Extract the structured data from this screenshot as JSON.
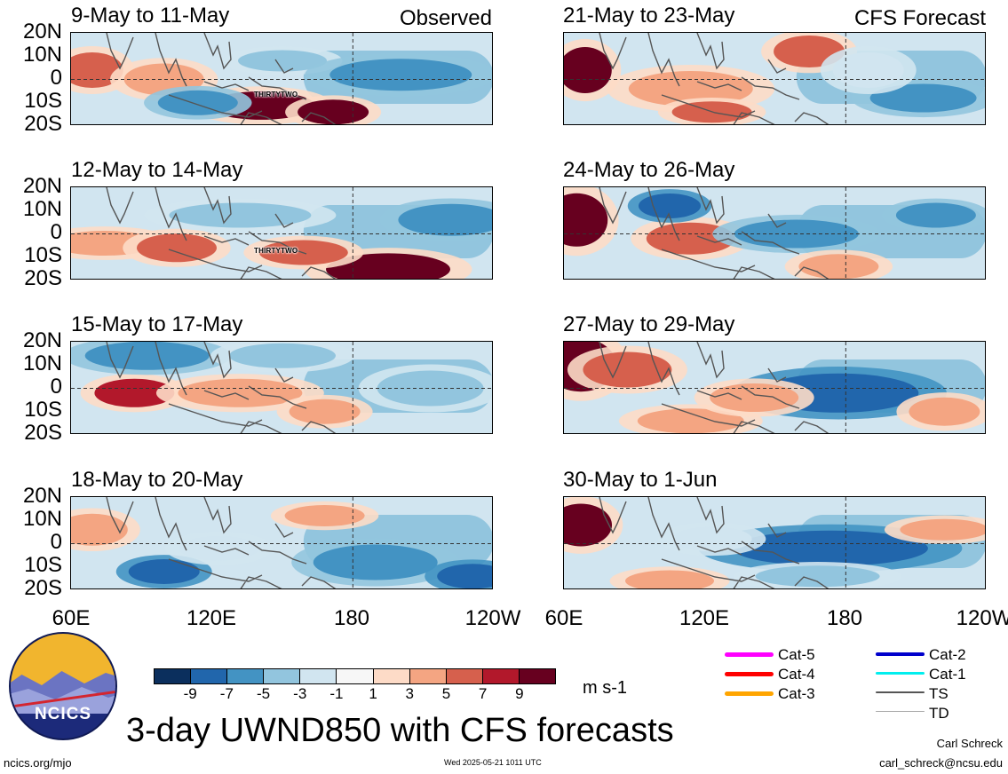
{
  "header": {
    "left_label": "Observed",
    "right_label": "CFS Forecast"
  },
  "panels": [
    {
      "title": "9-May to 11-May",
      "storm_label": "THIRTYTWO"
    },
    {
      "title": "21-May to 23-May"
    },
    {
      "title": "12-May to 14-May",
      "storm_label": "THIRTYTWO"
    },
    {
      "title": "24-May to 26-May"
    },
    {
      "title": "15-May to 17-May"
    },
    {
      "title": "27-May to 29-May"
    },
    {
      "title": "18-May to 20-May"
    },
    {
      "title": "30-May to 1-Jun"
    }
  ],
  "axes": {
    "lat_ticks": [
      "20N",
      "10N",
      "0",
      "10S",
      "20S"
    ],
    "lon_ticks": [
      "60E",
      "120E",
      "180",
      "120W"
    ]
  },
  "colorbar": {
    "labels": [
      "-9",
      "-7",
      "-5",
      "-3",
      "-1",
      "1",
      "3",
      "5",
      "7",
      "9"
    ],
    "colors": [
      "#0b2f5d",
      "#2166ac",
      "#4393c3",
      "#92c5de",
      "#d1e5f0",
      "#f7f7f7",
      "#fddbc7",
      "#f4a582",
      "#d6604d",
      "#b2182b",
      "#67001f"
    ],
    "units": "m s-1"
  },
  "legend": [
    {
      "label": "Cat-5",
      "color": "#ff00ff",
      "weight": 5
    },
    {
      "label": "Cat-4",
      "color": "#ff0000",
      "weight": 5
    },
    {
      "label": "Cat-3",
      "color": "#ffa500",
      "weight": 5
    },
    {
      "label": "Cat-2",
      "color": "#0000cc",
      "weight": 4
    },
    {
      "label": "Cat-1",
      "color": "#00eeee",
      "weight": 3
    },
    {
      "label": "TS",
      "color": "#555555",
      "weight": 2
    },
    {
      "label": "TD",
      "color": "#aaaaaa",
      "weight": 1
    }
  ],
  "footer": {
    "title": "3-day UWND850 with CFS forecasts",
    "website": "ncics.org/mjo",
    "timestamp": "Wed 2025-05-21 1011 UTC",
    "author": "Carl Schreck",
    "email": "carl_schreck@ncsu.edu",
    "logo_text": "NCICS"
  }
}
